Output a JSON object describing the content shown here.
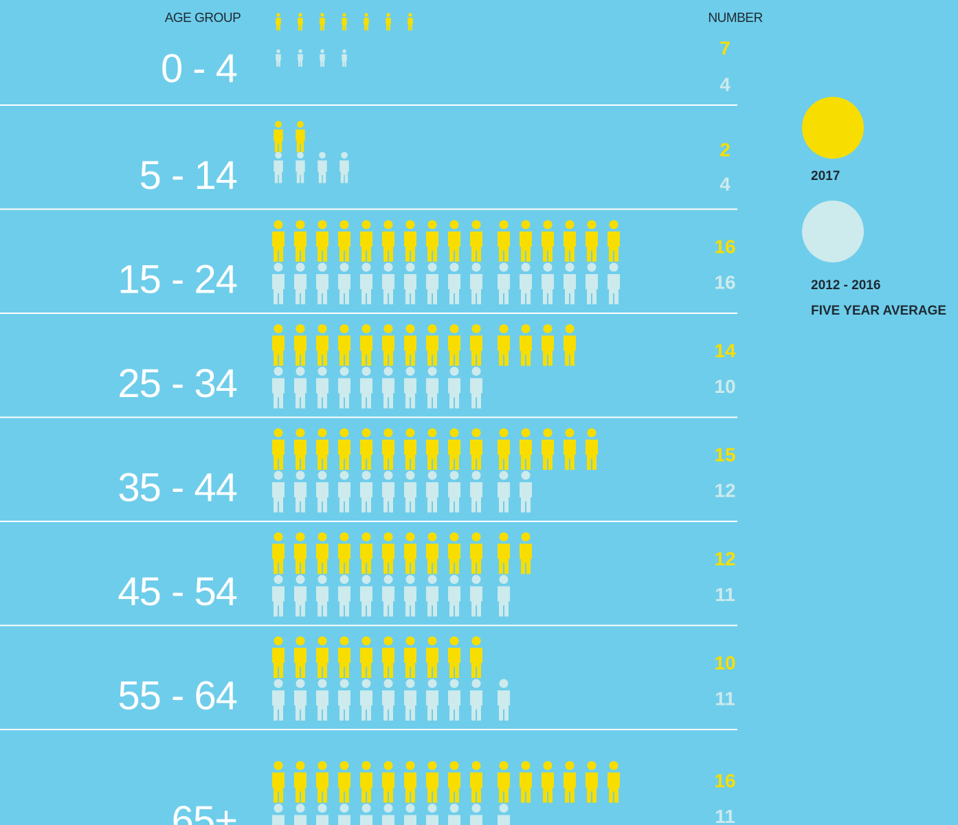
{
  "chart_data": {
    "type": "pictogram",
    "category_header": "AGE GROUP",
    "value_header": "NUMBER",
    "categories": [
      "0 - 4",
      "5 - 14",
      "15 - 24",
      "25 - 34",
      "35 - 44",
      "45 - 54",
      "55 - 64",
      "65+"
    ],
    "series": [
      {
        "name": "2017",
        "color": "#f7de00",
        "values": [
          7,
          2,
          16,
          14,
          15,
          12,
          10,
          16
        ]
      },
      {
        "name": "2012 - 2016\nFIVE YEAR AVERAGE",
        "color": "#cdeaec",
        "values": [
          4,
          4,
          16,
          10,
          12,
          11,
          11,
          11
        ]
      }
    ]
  }
}
